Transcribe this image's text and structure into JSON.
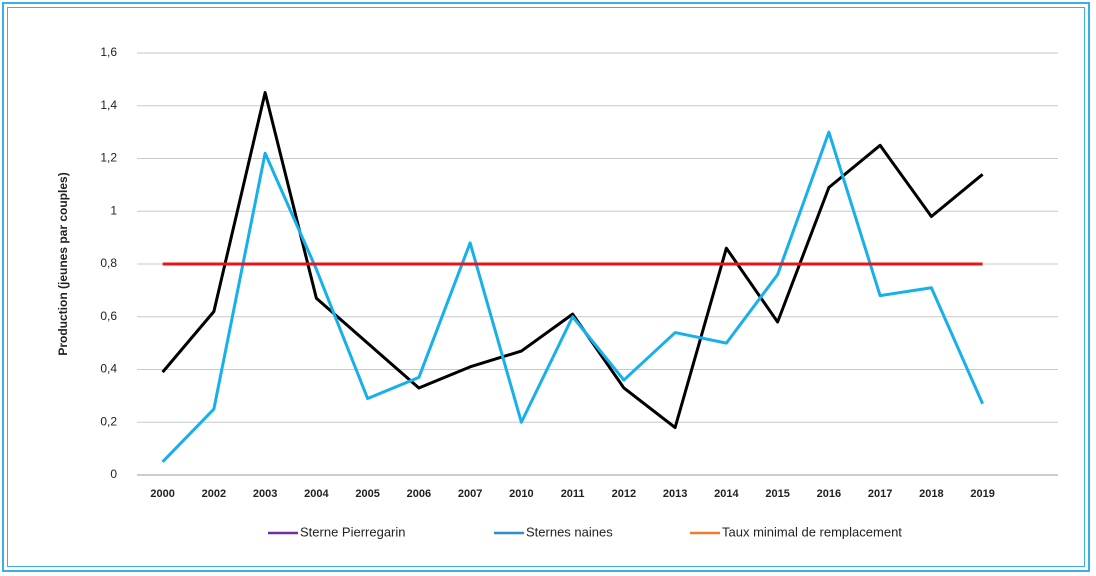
{
  "chart_data": {
    "type": "line",
    "y_label": "Production (jeunes par couples)",
    "categories": [
      "2000",
      "2002",
      "2003",
      "2004",
      "2005",
      "2006",
      "2007",
      "2010",
      "2011",
      "2012",
      "2013",
      "2014",
      "2015",
      "2016",
      "2017",
      "2018",
      "2019"
    ],
    "series": [
      {
        "name": "Sterne Pierregarin",
        "color": "#000000",
        "legend_color": "#7030a0",
        "values": [
          0.39,
          0.62,
          1.45,
          0.67,
          0.5,
          0.33,
          0.41,
          0.47,
          0.61,
          0.33,
          0.18,
          0.86,
          0.58,
          1.09,
          1.25,
          0.98,
          1.14
        ]
      },
      {
        "name": "Sternes naines",
        "color": "#17b0ea",
        "legend_color": "#2e8fc8",
        "values": [
          0.05,
          0.25,
          1.22,
          0.78,
          0.29,
          0.37,
          0.88,
          0.2,
          0.6,
          0.36,
          0.54,
          0.5,
          0.76,
          1.3,
          0.68,
          0.71,
          0.27
        ]
      },
      {
        "name": "Taux minimal de remplacement",
        "color": "#e8141b",
        "legend_color": "#ed7d31",
        "values": [
          0.8,
          0.8,
          0.8,
          0.8,
          0.8,
          0.8,
          0.8,
          0.8,
          0.8,
          0.8,
          0.8,
          0.8,
          0.8,
          0.8,
          0.8,
          0.8,
          0.8
        ]
      }
    ],
    "ylim": [
      0,
      1.6
    ],
    "yticks": [
      0,
      {
        "value": 0.2,
        "label": "0,2"
      },
      {
        "value": 0.4,
        "label": "0,4"
      },
      {
        "value": 0.6,
        "label": "0,6"
      },
      {
        "value": 0.8,
        "label": "0,8"
      },
      1,
      {
        "value": 1.2,
        "label": "1,2"
      },
      {
        "value": 1.4,
        "label": "1,4"
      },
      {
        "value": 1.6,
        "label": "1,6"
      }
    ],
    "grid": true
  }
}
